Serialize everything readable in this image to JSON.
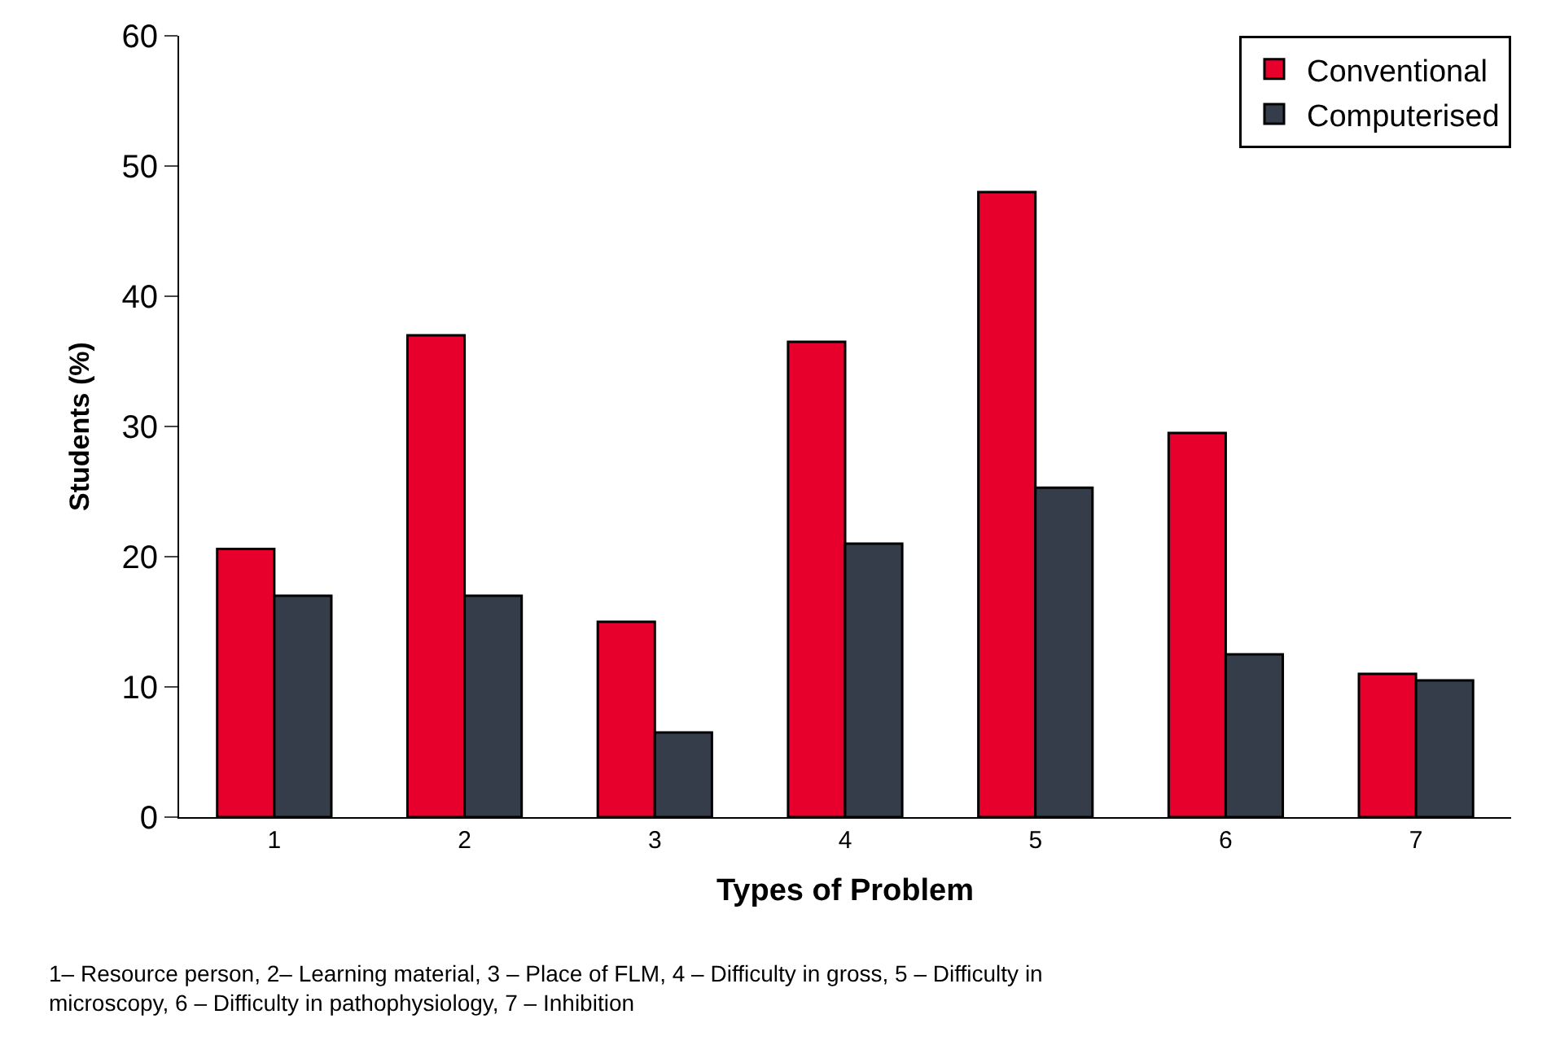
{
  "chart_data": {
    "type": "bar",
    "xlabel": "Types of Problem",
    "ylabel": "Students (%)",
    "categories": [
      "1",
      "2",
      "3",
      "4",
      "5",
      "6",
      "7"
    ],
    "series": [
      {
        "name": "Conventional",
        "color": "#e8002d",
        "values": [
          20.6,
          37,
          15,
          36.5,
          48,
          29.5,
          11
        ]
      },
      {
        "name": "Computerised",
        "color": "#353c4a",
        "values": [
          17,
          17,
          6.5,
          21,
          25.3,
          12.5,
          10.5
        ]
      }
    ],
    "ylim": [
      0,
      60
    ],
    "yticks": [
      0,
      10,
      20,
      30,
      40,
      50,
      60
    ],
    "grid": false,
    "legend": "top right",
    "annotations": [
      "1– Resource person, 2– Learning material, 3 – Place of FLM, 4 – Difficulty in gross, 5 – Difficulty in microscopy, 6 – Difficulty in pathophysiology, 7 – Inhibition"
    ]
  }
}
